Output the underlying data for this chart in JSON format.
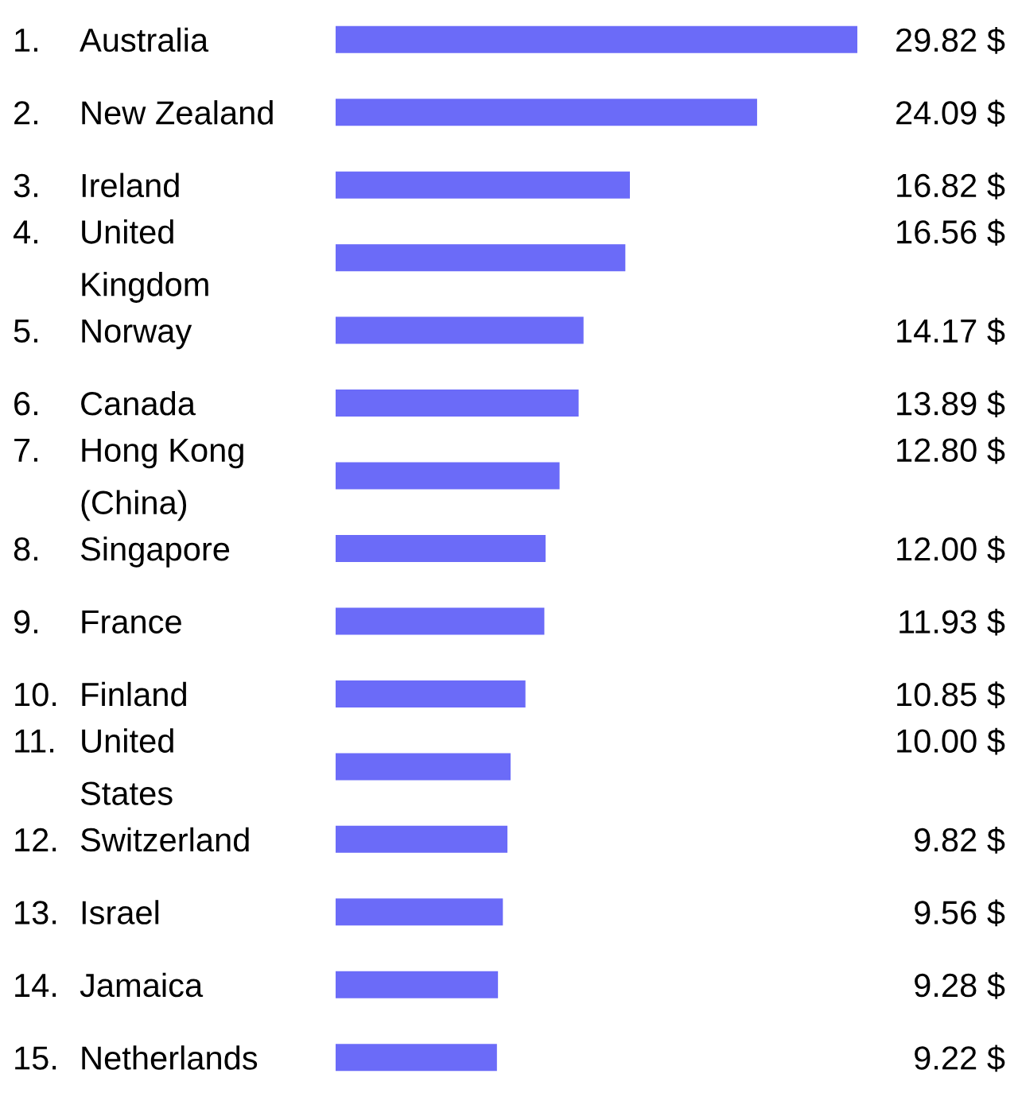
{
  "chart_data": {
    "type": "bar",
    "orientation": "horizontal",
    "color": "#6b6bf8",
    "categories": [
      "1. Australia",
      "2. New Zealand",
      "3. Ireland",
      "4. United\nKingdom",
      "5. Norway",
      "6. Canada",
      "7. Hong Kong\n(China)",
      "8. Singapore",
      "9. France",
      "10. Finland",
      "11. United\nStates",
      "12. Switzerland",
      "13. Israel",
      "14. Jamaica",
      "15. Netherlands"
    ],
    "values": [
      29.82,
      24.09,
      16.82,
      16.56,
      14.17,
      13.89,
      12.8,
      12.0,
      11.93,
      10.85,
      10.0,
      9.82,
      9.56,
      9.28,
      9.22
    ],
    "value_labels": [
      "29.82 $",
      "24.09 $",
      "16.82 $",
      "16.56 $",
      "14.17 $",
      "13.89 $",
      "12.80 $",
      "12.00 $",
      "11.93 $",
      "10.85 $",
      "10.00 $",
      "9.82 $",
      "9.56 $",
      "9.28 $",
      "9.22 $"
    ]
  }
}
